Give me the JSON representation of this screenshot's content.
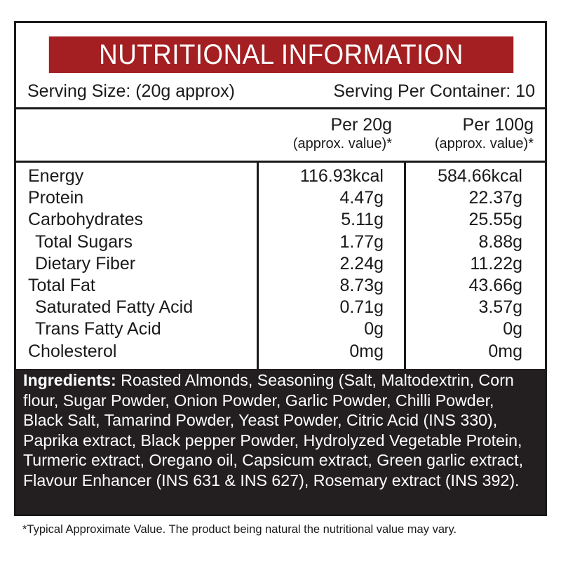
{
  "title": "NUTRITIONAL INFORMATION",
  "serving_size": "Serving Size: (20g approx)",
  "servings_per_container": "Serving Per Container: 10",
  "columns": [
    {
      "heading": "Per 20g",
      "subheading": "(approx. value)*"
    },
    {
      "heading": "Per 100g",
      "subheading": "(approx. value)*"
    }
  ],
  "nutrients": [
    {
      "name": "Energy",
      "per_20g": "116.93kcal",
      "per_100g": "584.66kcal"
    },
    {
      "name": "Protein",
      "per_20g": "4.47g",
      "per_100g": "22.37g"
    },
    {
      "name": "Carbohydrates",
      "per_20g": "5.11g",
      "per_100g": "25.55g"
    },
    {
      "name": "Total Sugars",
      "per_20g": "1.77g",
      "per_100g": "8.88g",
      "indent": true
    },
    {
      "name": "Dietary Fiber",
      "per_20g": "2.24g",
      "per_100g": "11.22g",
      "indent": true
    },
    {
      "name": "Total Fat",
      "per_20g": "8.73g",
      "per_100g": "43.66g"
    },
    {
      "name": "Saturated Fatty Acid",
      "per_20g": "0.71g",
      "per_100g": "3.57g",
      "indent": true
    },
    {
      "name": "Trans Fatty Acid",
      "per_20g": "0g",
      "per_100g": "0g",
      "indent": true
    },
    {
      "name": "Cholesterol",
      "per_20g": "0mg",
      "per_100g": "0mg"
    }
  ],
  "ingredients_label": "Ingredients:",
  "ingredients_text": "Roasted Almonds, Seasoning (Salt, Maltodextrin, Corn flour, Sugar Powder, Onion Powder, Garlic Powder, Chilli Powder, Black Salt, Tamarind Powder, Yeast Powder, Citric Acid (INS 330), Paprika extract, Black pepper Powder, Hydrolyzed Vegetable Protein, Turmeric extract, Oregano oil, Capsicum extract, Green garlic extract, Flavour Enhancer (INS 631 & INS 627), Rosemary extract (INS 392).",
  "footnote": "*Typical Approximate Value. The product being natural the nutritional value may vary.",
  "colors": {
    "title_bg": "#a31f22",
    "ingredients_bg": "#231f20",
    "border": "#1a1a1a"
  }
}
